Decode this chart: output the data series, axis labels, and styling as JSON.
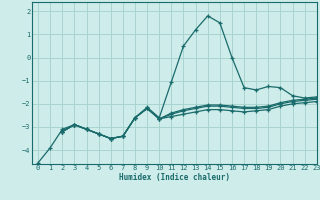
{
  "title": "",
  "xlabel": "Humidex (Indice chaleur)",
  "xlim": [
    -0.5,
    23
  ],
  "ylim": [
    -4.6,
    2.4
  ],
  "xticks": [
    0,
    1,
    2,
    3,
    4,
    5,
    6,
    7,
    8,
    9,
    10,
    11,
    12,
    13,
    14,
    15,
    16,
    17,
    18,
    19,
    20,
    21,
    22,
    23
  ],
  "yticks": [
    -4,
    -3,
    -2,
    -1,
    0,
    1,
    2
  ],
  "background_color": "#cdecea",
  "grid_color": "#a8d4d0",
  "line_color": "#1a6b6b",
  "lines": [
    [
      null,
      null,
      -3.2,
      -2.9,
      -3.1,
      -3.3,
      -3.5,
      -3.4,
      -2.6,
      -2.15,
      -2.6,
      -1.05,
      0.5,
      1.2,
      1.8,
      1.5,
      0.0,
      -1.3,
      -1.4,
      -1.25,
      -1.3,
      -1.65,
      -1.75,
      -1.7
    ],
    [
      -4.55,
      -3.9,
      -3.1,
      -2.9,
      -3.1,
      null,
      null,
      null,
      null,
      null,
      null,
      null,
      null,
      null,
      null,
      null,
      null,
      null,
      null,
      null,
      null,
      null,
      null,
      null
    ],
    [
      null,
      null,
      -3.2,
      -2.9,
      -3.1,
      -3.3,
      -3.5,
      -3.4,
      -2.6,
      -2.2,
      -2.65,
      -2.4,
      -2.25,
      -2.15,
      -2.05,
      -2.05,
      -2.1,
      -2.15,
      -2.15,
      -2.1,
      -1.95,
      -1.85,
      -1.8,
      -1.75
    ],
    [
      null,
      null,
      -3.2,
      -2.9,
      -3.1,
      -3.3,
      -3.5,
      -3.4,
      -2.6,
      -2.2,
      -2.65,
      -2.45,
      -2.3,
      -2.2,
      -2.1,
      -2.1,
      -2.15,
      -2.2,
      -2.2,
      -2.15,
      -2.0,
      -1.9,
      -1.85,
      -1.8
    ],
    [
      null,
      null,
      -3.2,
      -2.9,
      -3.1,
      -3.3,
      -3.5,
      -3.4,
      -2.6,
      -2.2,
      -2.65,
      -2.55,
      -2.45,
      -2.35,
      -2.25,
      -2.25,
      -2.3,
      -2.35,
      -2.3,
      -2.25,
      -2.1,
      -2.0,
      -1.95,
      -1.9
    ]
  ]
}
